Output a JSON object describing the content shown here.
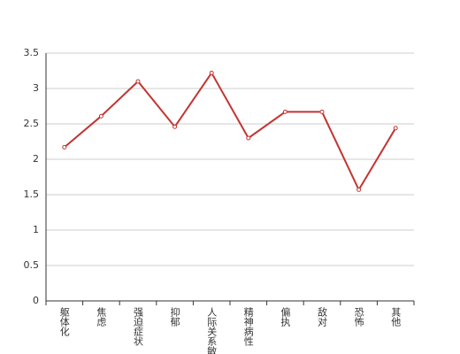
{
  "chart_data": {
    "type": "line",
    "categories": [
      "躯体化",
      "焦虑",
      "强迫症状",
      "抑郁",
      "人际关系敏感",
      "精神病性",
      "偏执",
      "敌对",
      "恐怖",
      "其他"
    ],
    "series": [
      {
        "color": "#c23531",
        "values": [
          2.17,
          2.61,
          3.1,
          2.46,
          3.22,
          2.3,
          2.67,
          2.67,
          1.57,
          2.44
        ]
      }
    ],
    "ylim": [
      0,
      3.5
    ],
    "yticks": [
      0,
      0.5,
      1,
      1.5,
      2,
      2.5,
      3,
      3.5
    ],
    "grid": true
  }
}
